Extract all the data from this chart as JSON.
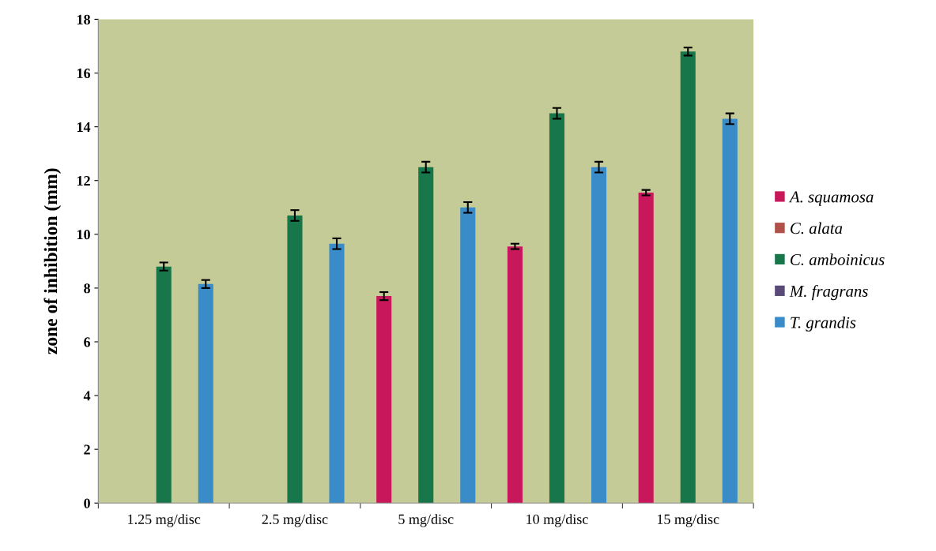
{
  "chart_data": {
    "type": "bar",
    "ylabel": "zone of inhibition (mm)",
    "categories": [
      "1.25 mg/disc",
      "2.5 mg/disc",
      "5 mg/disc",
      "10 mg/disc",
      "15 mg/disc"
    ],
    "series": [
      {
        "name": "A. squamosa",
        "color": "#c8175a",
        "values": [
          null,
          null,
          7.7,
          9.55,
          11.55
        ],
        "errors": [
          null,
          null,
          0.15,
          0.1,
          0.1
        ]
      },
      {
        "name": "C. alata",
        "color": "#b0504a",
        "values": [
          null,
          null,
          null,
          null,
          null
        ]
      },
      {
        "name": "C. amboinicus",
        "color": "#17774a",
        "values": [
          8.8,
          10.7,
          12.5,
          14.5,
          16.8
        ],
        "errors": [
          0.15,
          0.2,
          0.2,
          0.2,
          0.15
        ]
      },
      {
        "name": "M. fragrans",
        "color": "#5a4a78",
        "values": [
          null,
          null,
          null,
          null,
          null
        ]
      },
      {
        "name": "T. grandis",
        "color": "#3a8cc8",
        "values": [
          8.15,
          9.65,
          11.0,
          12.5,
          14.3
        ],
        "errors": [
          0.15,
          0.2,
          0.2,
          0.2,
          0.2
        ]
      }
    ],
    "ylim": [
      0,
      18
    ],
    "yticks": [
      0,
      2,
      4,
      6,
      8,
      10,
      12,
      14,
      16,
      18
    ],
    "grid": false,
    "legend": "right"
  }
}
